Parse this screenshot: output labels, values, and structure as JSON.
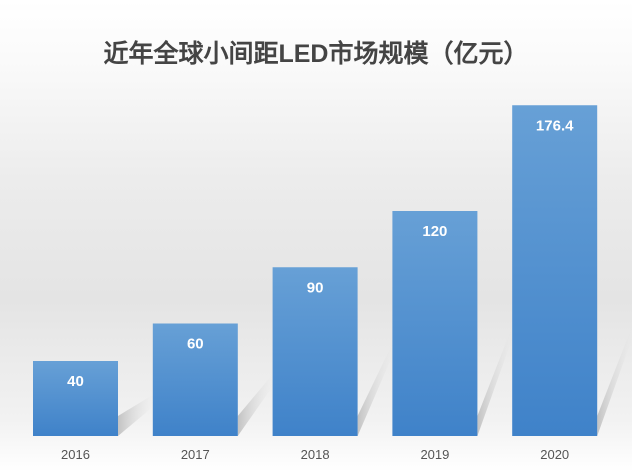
{
  "chart_data": {
    "type": "bar",
    "title": "近年全球小间距LED市场规模（亿元）",
    "categories": [
      "2016",
      "2017",
      "2018",
      "2019",
      "2020"
    ],
    "values": [
      40,
      60,
      90,
      120,
      176.4
    ],
    "data_labels": [
      "40",
      "60",
      "90",
      "120",
      "176.4"
    ],
    "xlabel": "",
    "ylabel": "",
    "ylim": [
      0,
      180
    ],
    "grid": false,
    "legend": "none",
    "bar_color": "#4f8fd0",
    "label_color": "#ffffff"
  }
}
